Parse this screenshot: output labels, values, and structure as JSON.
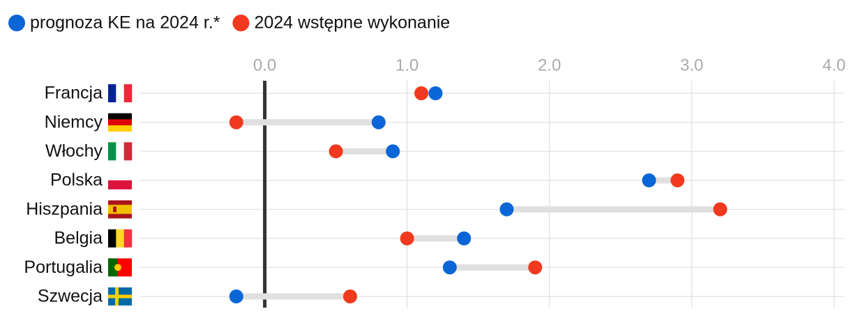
{
  "chart_data": {
    "type": "dumbbell",
    "categories": [
      "Francja",
      "Niemcy",
      "Włochy",
      "Polska",
      "Hiszpania",
      "Belgia",
      "Portugalia",
      "Szwecja"
    ],
    "series": [
      {
        "name": "prognoza KE na 2024 r.*",
        "color": "#0a66d6",
        "values": [
          1.2,
          0.8,
          0.9,
          2.7,
          1.7,
          1.4,
          1.3,
          -0.2
        ]
      },
      {
        "name": "2024 wstępne wykonanie",
        "color": "#f0391e",
        "values": [
          1.1,
          -0.2,
          0.5,
          2.9,
          3.2,
          1.0,
          1.9,
          0.6
        ]
      }
    ],
    "xlim": [
      -0.88,
      4.07
    ],
    "xticks": [
      {
        "value": 0,
        "label": "0.0"
      },
      {
        "value": 1,
        "label": "1.0"
      },
      {
        "value": 2,
        "label": "2.0"
      },
      {
        "value": 3,
        "label": "3.0"
      },
      {
        "value": 4,
        "label": "4.0"
      }
    ],
    "grid": true
  }
}
